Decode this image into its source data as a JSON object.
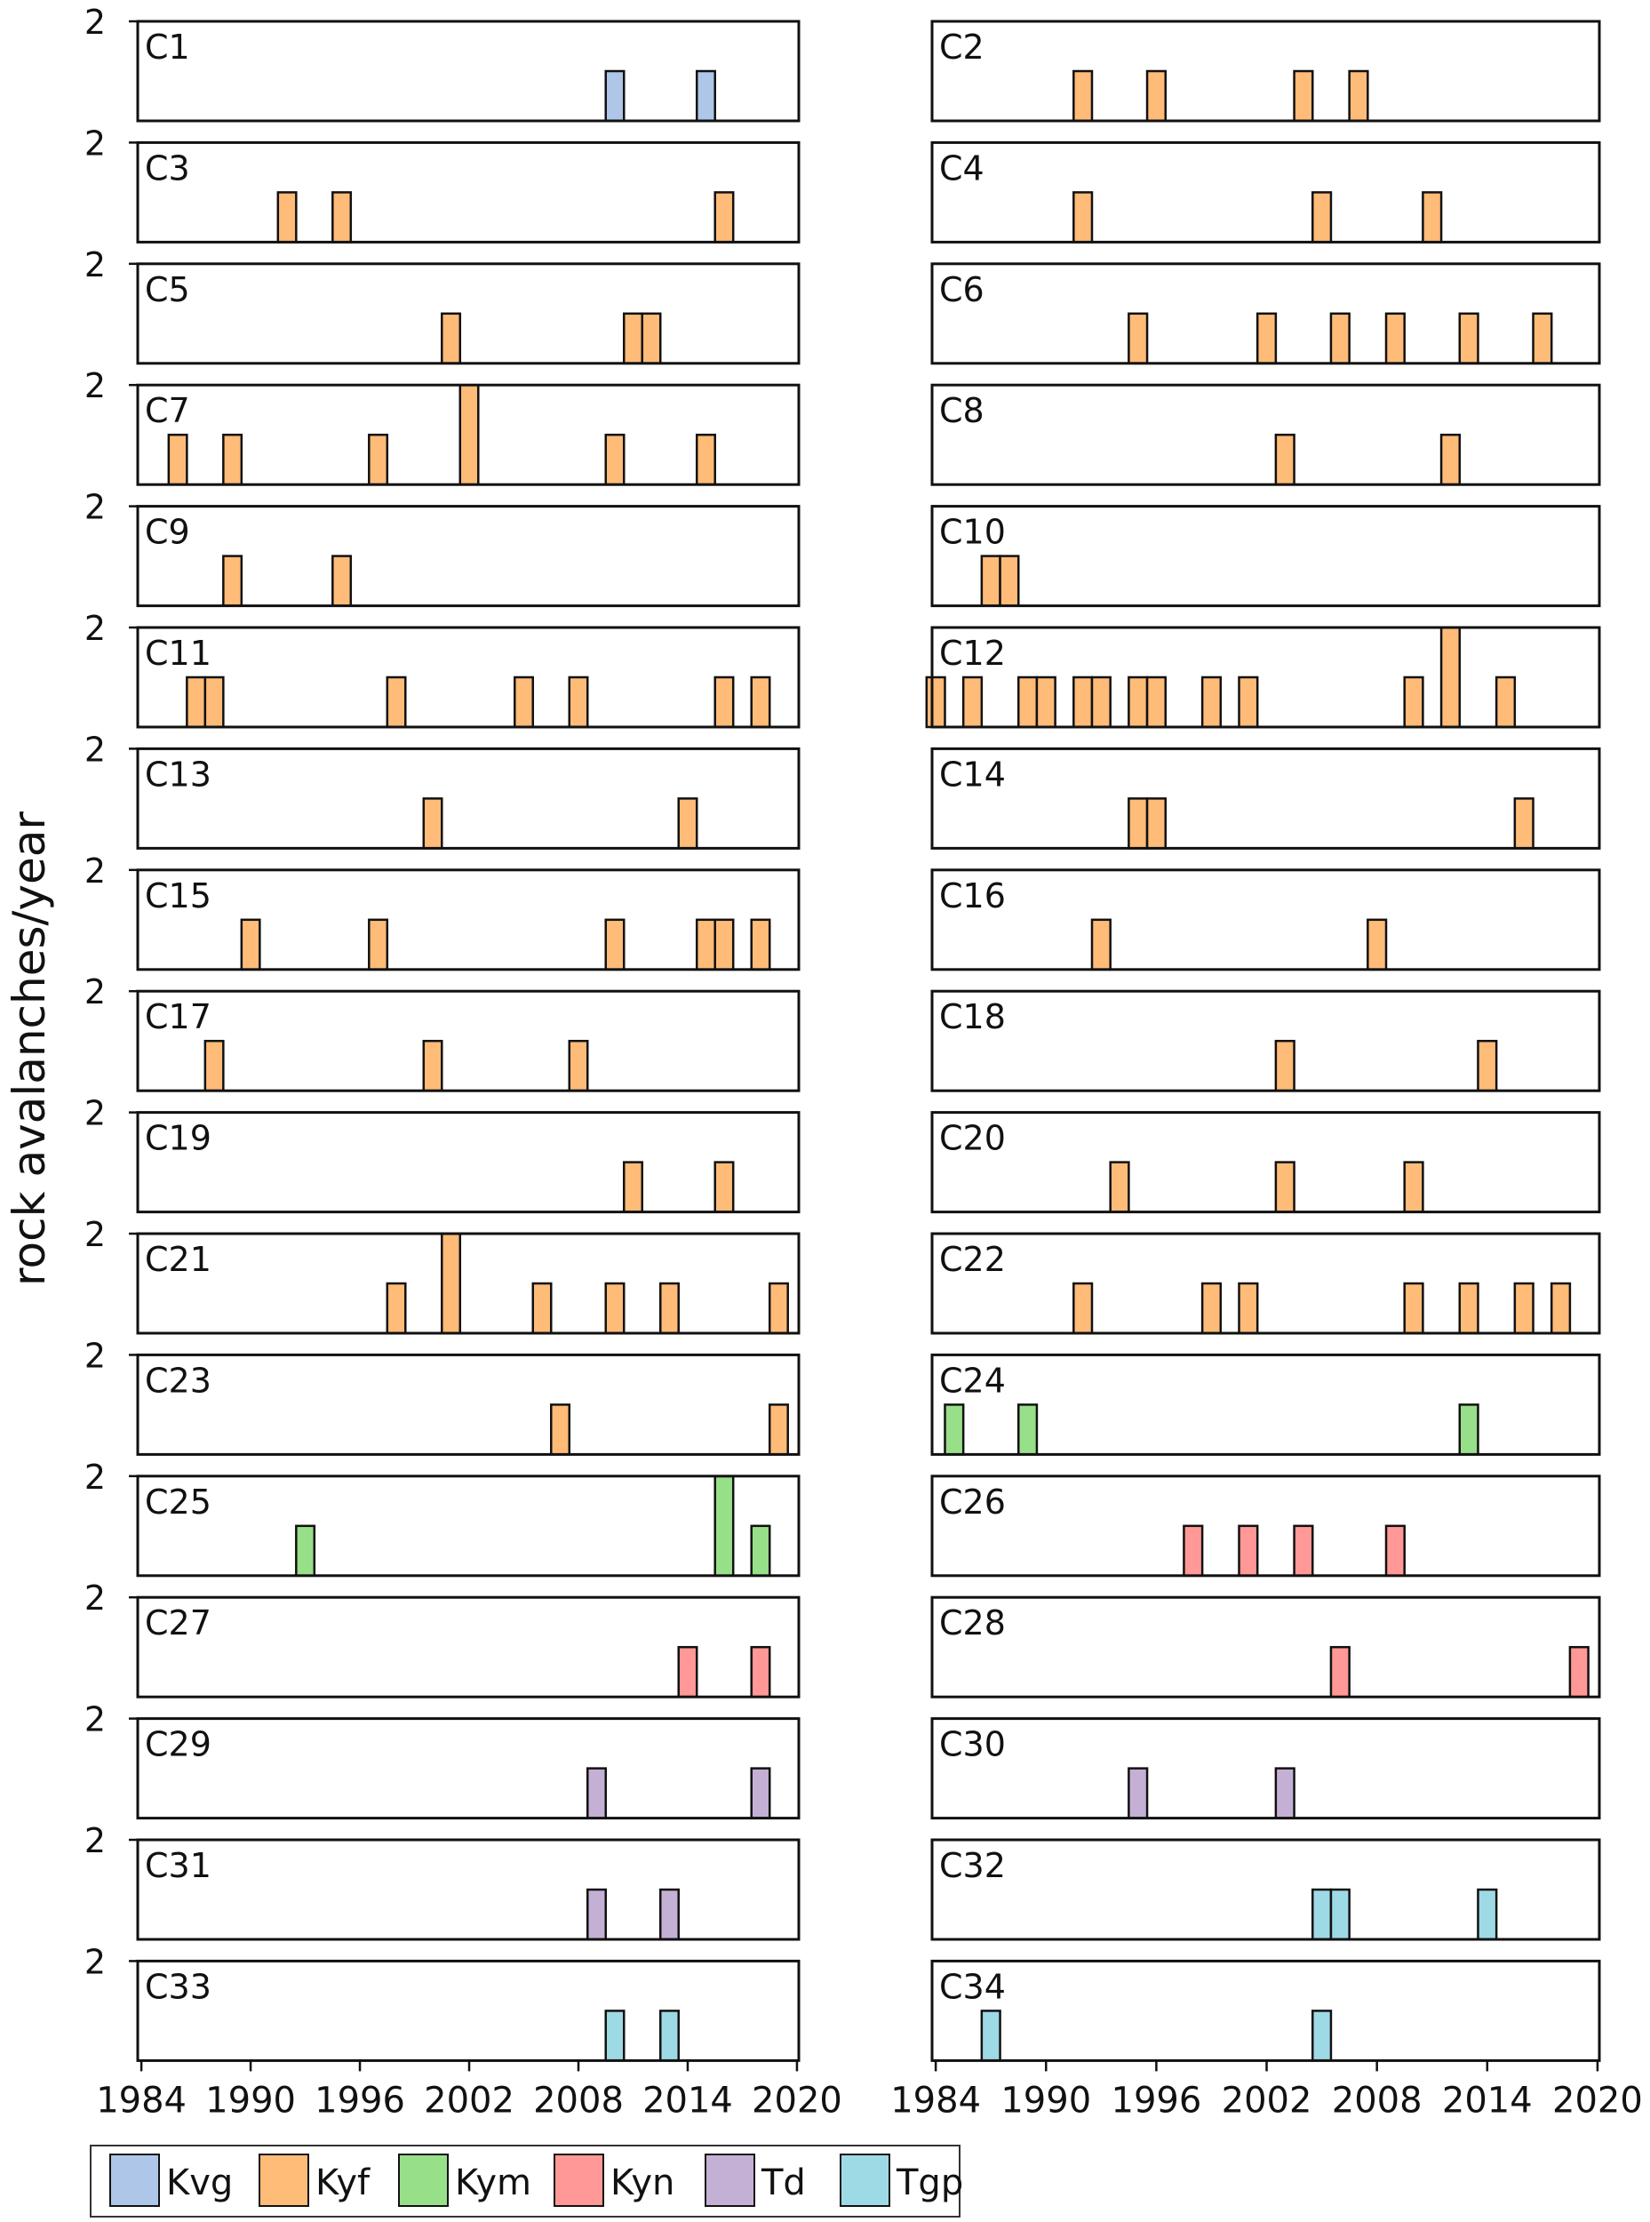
{
  "chart_data": {
    "type": "bar",
    "title": "",
    "ylabel": "rock avalanches/year",
    "xlabel": "",
    "xlim": [
      1983.8,
      2020.1
    ],
    "ylim": [
      0,
      2
    ],
    "yticks": [
      2
    ],
    "xticks": [
      1984,
      1990,
      1996,
      2002,
      2008,
      2014,
      2020
    ],
    "grid": false,
    "legend_placement": "bottom-left",
    "legend": [
      {
        "name": "Kvg",
        "color": "#aec7e8"
      },
      {
        "name": "Kyf",
        "color": "#ffbb78"
      },
      {
        "name": "Kym",
        "color": "#98df8a"
      },
      {
        "name": "Kyn",
        "color": "#ff9896"
      },
      {
        "name": "Td",
        "color": "#c5b0d5"
      },
      {
        "name": "Tgp",
        "color": "#9edae5"
      }
    ],
    "panels": [
      {
        "label": "C1",
        "unit": "Kvg",
        "bars": [
          [
            2010,
            1
          ],
          [
            2015,
            1
          ]
        ]
      },
      {
        "label": "C2",
        "unit": "Kyf",
        "bars": [
          [
            1992,
            1
          ],
          [
            1996,
            1
          ],
          [
            2004,
            1
          ],
          [
            2007,
            1
          ]
        ]
      },
      {
        "label": "C3",
        "unit": "Kyf",
        "bars": [
          [
            1992,
            1
          ],
          [
            1995,
            1
          ],
          [
            2016,
            1
          ]
        ]
      },
      {
        "label": "C4",
        "unit": "Kyf",
        "bars": [
          [
            1992,
            1
          ],
          [
            2005,
            1
          ],
          [
            2011,
            1
          ]
        ]
      },
      {
        "label": "C5",
        "unit": "Kyf",
        "bars": [
          [
            2001,
            1
          ],
          [
            2011,
            1
          ],
          [
            2012,
            1
          ]
        ]
      },
      {
        "label": "C6",
        "unit": "Kyf",
        "bars": [
          [
            1995,
            1
          ],
          [
            2002,
            1
          ],
          [
            2006,
            1
          ],
          [
            2009,
            1
          ],
          [
            2013,
            1
          ],
          [
            2017,
            1
          ]
        ]
      },
      {
        "label": "C7",
        "unit": "Kyf",
        "bars": [
          [
            1986,
            1
          ],
          [
            1989,
            1
          ],
          [
            1997,
            1
          ],
          [
            2002,
            2
          ],
          [
            2010,
            1
          ],
          [
            2015,
            1
          ]
        ]
      },
      {
        "label": "C8",
        "unit": "Kyf",
        "bars": [
          [
            2003,
            1
          ],
          [
            2012,
            1
          ]
        ]
      },
      {
        "label": "C9",
        "unit": "Kyf",
        "bars": [
          [
            1989,
            1
          ],
          [
            1995,
            1
          ]
        ]
      },
      {
        "label": "C10",
        "unit": "Kyf",
        "bars": [
          [
            1987,
            1
          ],
          [
            1988,
            1
          ]
        ]
      },
      {
        "label": "C11",
        "unit": "Kyf",
        "bars": [
          [
            1987,
            1
          ],
          [
            1988,
            1
          ],
          [
            1998,
            1
          ],
          [
            2005,
            1
          ],
          [
            2008,
            1
          ],
          [
            2016,
            1
          ],
          [
            2018,
            1
          ]
        ]
      },
      {
        "label": "C12",
        "unit": "Kyf",
        "bars": [
          [
            1984,
            1
          ],
          [
            1986,
            1
          ],
          [
            1989,
            1
          ],
          [
            1990,
            1
          ],
          [
            1992,
            1
          ],
          [
            1993,
            1
          ],
          [
            1995,
            1
          ],
          [
            1996,
            1
          ],
          [
            1999,
            1
          ],
          [
            2001,
            1
          ],
          [
            2010,
            1
          ],
          [
            2012,
            2
          ],
          [
            2015,
            1
          ]
        ]
      },
      {
        "label": "C13",
        "unit": "Kyf",
        "bars": [
          [
            2000,
            1
          ],
          [
            2014,
            1
          ]
        ]
      },
      {
        "label": "C14",
        "unit": "Kyf",
        "bars": [
          [
            1995,
            1
          ],
          [
            1996,
            1
          ],
          [
            2016,
            1
          ]
        ]
      },
      {
        "label": "C15",
        "unit": "Kyf",
        "bars": [
          [
            1990,
            1
          ],
          [
            1997,
            1
          ],
          [
            2010,
            1
          ],
          [
            2015,
            1
          ],
          [
            2016,
            1
          ],
          [
            2018,
            1
          ]
        ]
      },
      {
        "label": "C16",
        "unit": "Kyf",
        "bars": [
          [
            1993,
            1
          ],
          [
            2008,
            1
          ]
        ]
      },
      {
        "label": "C17",
        "unit": "Kyf",
        "bars": [
          [
            1988,
            1
          ],
          [
            2000,
            1
          ],
          [
            2008,
            1
          ]
        ]
      },
      {
        "label": "C18",
        "unit": "Kyf",
        "bars": [
          [
            2003,
            1
          ],
          [
            2014,
            1
          ]
        ]
      },
      {
        "label": "C19",
        "unit": "Kyf",
        "bars": [
          [
            2011,
            1
          ],
          [
            2016,
            1
          ]
        ]
      },
      {
        "label": "C20",
        "unit": "Kyf",
        "bars": [
          [
            1994,
            1
          ],
          [
            2003,
            1
          ],
          [
            2010,
            1
          ]
        ]
      },
      {
        "label": "C21",
        "unit": "Kyf",
        "bars": [
          [
            1998,
            1
          ],
          [
            2001,
            2
          ],
          [
            2006,
            1
          ],
          [
            2010,
            1
          ],
          [
            2013,
            1
          ],
          [
            2019,
            1
          ]
        ]
      },
      {
        "label": "C22",
        "unit": "Kyf",
        "bars": [
          [
            1992,
            1
          ],
          [
            1999,
            1
          ],
          [
            2001,
            1
          ],
          [
            2010,
            1
          ],
          [
            2013,
            1
          ],
          [
            2016,
            1
          ],
          [
            2018,
            1
          ]
        ]
      },
      {
        "label": "C23",
        "unit": "Kyf",
        "bars": [
          [
            2007,
            1
          ],
          [
            2019,
            1
          ]
        ]
      },
      {
        "label": "C24",
        "unit": "Kym",
        "bars": [
          [
            1985,
            1
          ],
          [
            1989,
            1
          ],
          [
            2013,
            1
          ]
        ]
      },
      {
        "label": "C25",
        "unit": "Kym",
        "bars": [
          [
            1993,
            1
          ],
          [
            2016,
            2
          ],
          [
            2018,
            1
          ]
        ]
      },
      {
        "label": "C26",
        "unit": "Kyn",
        "bars": [
          [
            1998,
            1
          ],
          [
            2001,
            1
          ],
          [
            2004,
            1
          ],
          [
            2009,
            1
          ]
        ]
      },
      {
        "label": "C27",
        "unit": "Kyn",
        "bars": [
          [
            2014,
            1
          ],
          [
            2018,
            1
          ]
        ]
      },
      {
        "label": "C28",
        "unit": "Kyn",
        "bars": [
          [
            2006,
            1
          ],
          [
            2019,
            1
          ]
        ]
      },
      {
        "label": "C29",
        "unit": "Td",
        "bars": [
          [
            2009,
            1
          ],
          [
            2018,
            1
          ]
        ]
      },
      {
        "label": "C30",
        "unit": "Td",
        "bars": [
          [
            1995,
            1
          ],
          [
            2003,
            1
          ]
        ]
      },
      {
        "label": "C31",
        "unit": "Td",
        "bars": [
          [
            2009,
            1
          ],
          [
            2013,
            1
          ]
        ]
      },
      {
        "label": "C32",
        "unit": "Tgp",
        "bars": [
          [
            2005,
            1
          ],
          [
            2006,
            1
          ],
          [
            2014,
            1
          ]
        ]
      },
      {
        "label": "C33",
        "unit": "Tgp",
        "bars": [
          [
            2010,
            1
          ],
          [
            2013,
            1
          ]
        ]
      },
      {
        "label": "C34",
        "unit": "Tgp",
        "bars": [
          [
            1987,
            1
          ],
          [
            2005,
            1
          ]
        ]
      }
    ]
  }
}
